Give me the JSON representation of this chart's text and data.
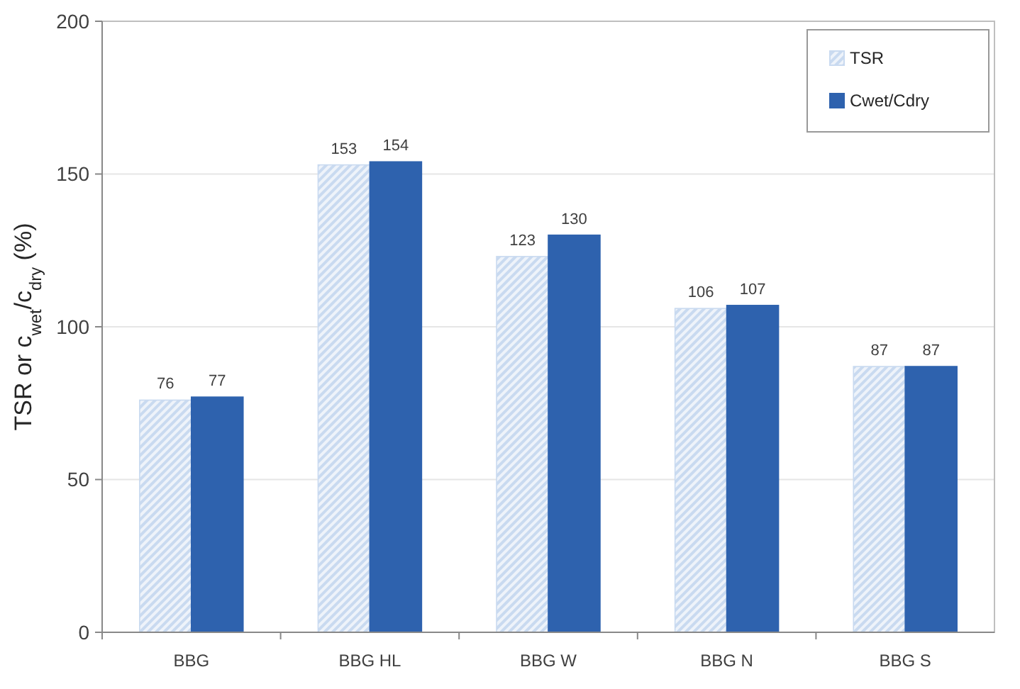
{
  "chart_data": {
    "type": "bar",
    "ylabel": "TSR or c$_{wet}$/c$_{dry}$ (%)",
    "categories": [
      "BBG",
      "BBG HL",
      "BBG W",
      "BBG N",
      "BBG S"
    ],
    "series": [
      {
        "name": "TSR",
        "color": "#c9daf0",
        "values": [
          76,
          153,
          123,
          106,
          87
        ]
      },
      {
        "name": "Cwet/Cdry",
        "color": "#2e62ae",
        "values": [
          77,
          154,
          130,
          107,
          87
        ]
      }
    ],
    "ylim": [
      0,
      200
    ],
    "yticks": [
      0,
      50,
      100,
      150,
      200
    ],
    "grid": "y",
    "legend": "top right",
    "data_labels": true
  }
}
